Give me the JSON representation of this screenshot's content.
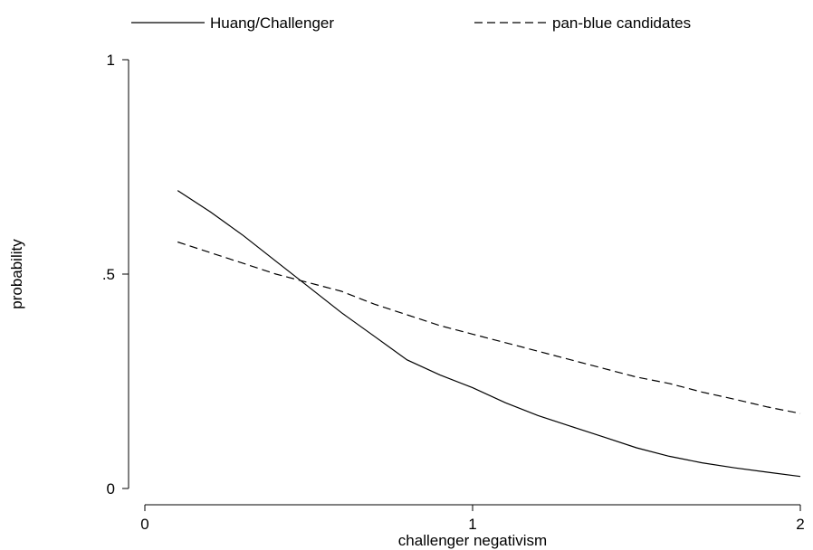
{
  "chart_data": {
    "type": "line",
    "title": "",
    "xlabel": "challenger negativism",
    "ylabel": "probability",
    "xlim": [
      0,
      2
    ],
    "ylim": [
      0,
      1
    ],
    "x_ticks": [
      {
        "value": 0,
        "label": "0"
      },
      {
        "value": 1,
        "label": "1"
      },
      {
        "value": 2,
        "label": "2"
      }
    ],
    "y_ticks": [
      {
        "value": 0,
        "label": "0"
      },
      {
        "value": 0.5,
        "label": ".5"
      },
      {
        "value": 1,
        "label": "1"
      }
    ],
    "grid": false,
    "legend_position": "top",
    "series": [
      {
        "name": "Huang/Challenger",
        "style": "solid",
        "color": "#000000",
        "x": [
          0.1,
          0.2,
          0.3,
          0.4,
          0.5,
          0.6,
          0.7,
          0.8,
          0.9,
          1.0,
          1.1,
          1.2,
          1.3,
          1.4,
          1.5,
          1.6,
          1.7,
          1.8,
          1.9,
          2.0
        ],
        "y": [
          0.695,
          0.645,
          0.59,
          0.53,
          0.47,
          0.41,
          0.355,
          0.3,
          0.265,
          0.235,
          0.2,
          0.17,
          0.145,
          0.12,
          0.095,
          0.075,
          0.06,
          0.048,
          0.038,
          0.028
        ]
      },
      {
        "name": "pan-blue candidates",
        "style": "dashed",
        "color": "#000000",
        "x": [
          0.1,
          0.2,
          0.3,
          0.4,
          0.5,
          0.6,
          0.7,
          0.8,
          0.9,
          1.0,
          1.1,
          1.2,
          1.3,
          1.4,
          1.5,
          1.6,
          1.7,
          1.8,
          1.9,
          2.0
        ],
        "y": [
          0.575,
          0.55,
          0.525,
          0.5,
          0.48,
          0.46,
          0.43,
          0.405,
          0.38,
          0.36,
          0.34,
          0.32,
          0.3,
          0.28,
          0.26,
          0.245,
          0.225,
          0.208,
          0.19,
          0.175
        ]
      }
    ]
  }
}
